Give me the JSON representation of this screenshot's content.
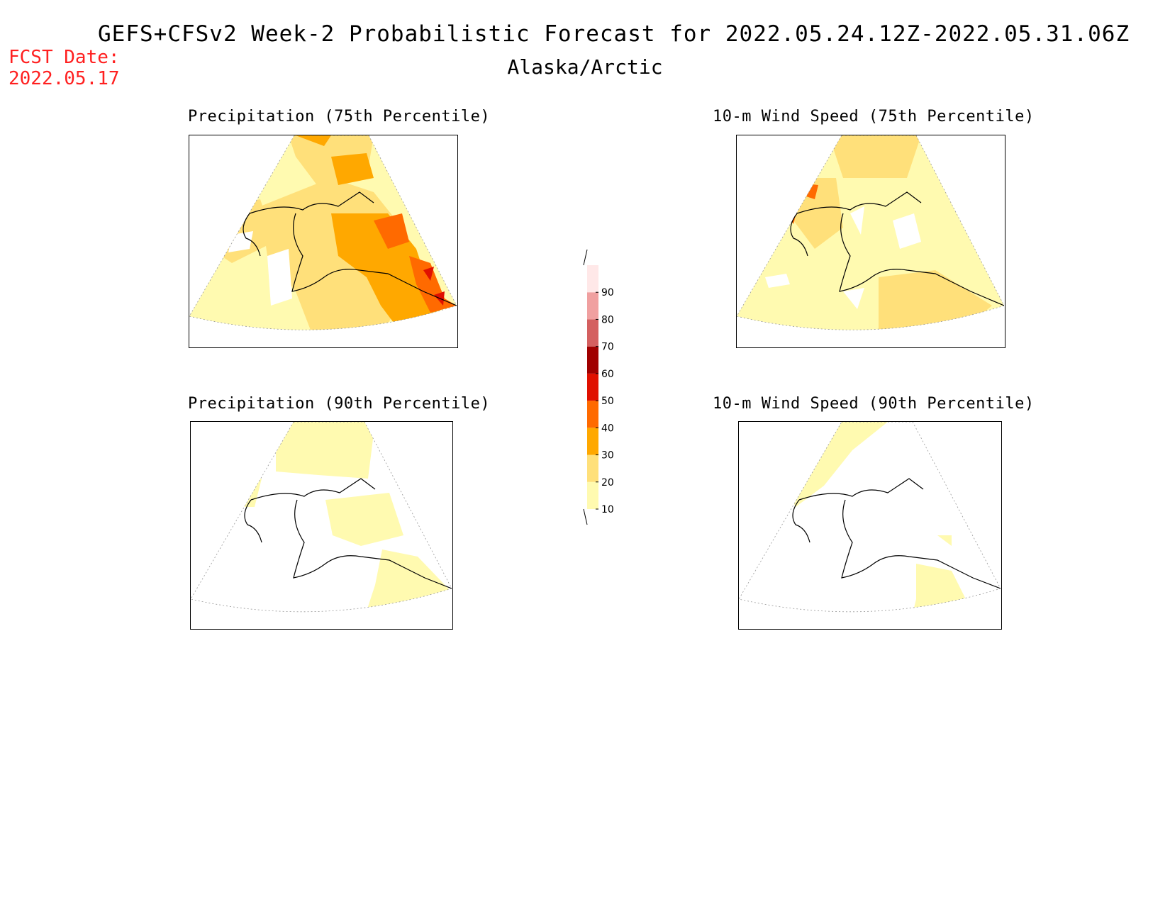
{
  "header": {
    "title": "GEFS+CFSv2 Week-2 Probabilistic Forecast for 2022.05.24.12Z-2022.05.31.06Z",
    "region": "Alaska/Arctic",
    "fcst_label": "FCST Date:",
    "fcst_date": "2022.05.17"
  },
  "panels": [
    {
      "title": "Precipitation (75th Percentile)"
    },
    {
      "title": "10-m Wind Speed (75th Percentile)"
    },
    {
      "title": "Precipitation (90th Percentile)"
    },
    {
      "title": "10-m Wind Speed (90th Percentile)"
    }
  ],
  "colorbar": {
    "levels": [
      "10",
      "20",
      "30",
      "40",
      "50",
      "60",
      "70",
      "80",
      "90"
    ],
    "colors": {
      "10-20": "#fffab0",
      "20-30": "#ffe07a",
      "30-40": "#ffa800",
      "40-50": "#ff6a00",
      "50-60": "#e01000",
      "60-70": "#a00000",
      "70-80": "#d46060",
      "80-90": "#f0a0a0",
      "90+": "#ffe8e8"
    }
  }
}
